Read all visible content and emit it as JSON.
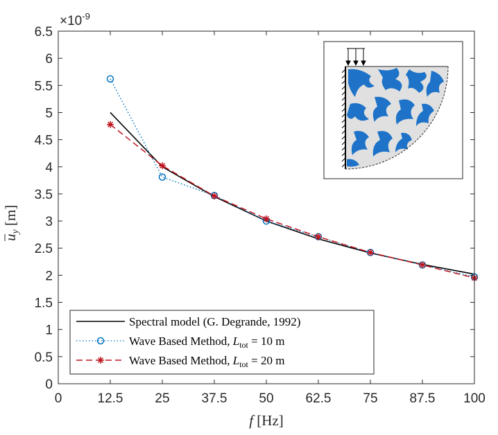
{
  "chart_data": {
    "type": "line",
    "xlabel": "f [Hz]",
    "xlabel_var": "f",
    "xlabel_unit": "[Hz]",
    "ylabel": "ū_y [m]",
    "ylabel_var": "u",
    "ylabel_sub": "y",
    "ylabel_unit": "[m]",
    "exponent_label": "×10⁻⁹",
    "exponent_base": "×10",
    "exponent_power": "-9",
    "xlim": [
      0,
      100
    ],
    "ylim": [
      0,
      6.5
    ],
    "xticks": [
      0,
      12.5,
      25,
      37.5,
      50,
      62.5,
      75,
      87.5,
      100
    ],
    "xtick_labels": [
      "0",
      "12.5",
      "25",
      "37.5",
      "50",
      "62.5",
      "75",
      "87.5",
      "100"
    ],
    "yticks": [
      0,
      0.5,
      1,
      1.5,
      2,
      2.5,
      3,
      3.5,
      4,
      4.5,
      5,
      5.5,
      6,
      6.5
    ],
    "ytick_labels": [
      "0",
      "0.5",
      "1",
      "1.5",
      "2",
      "2.5",
      "3",
      "3.5",
      "4",
      "4.5",
      "5",
      "5.5",
      "6",
      "6.5"
    ],
    "grid": false,
    "legend_position": "bottom-left",
    "series": [
      {
        "name": "Spectral model (G. Degrande, 1992)",
        "legend_text": "Spectral model (G. Degrande, 1992)",
        "color": "#000000",
        "line": "solid",
        "marker": "none",
        "x": [
          12.5,
          25,
          37.5,
          50,
          62.5,
          75,
          87.5,
          100
        ],
        "y": [
          5.0,
          4.0,
          3.45,
          3.0,
          2.67,
          2.41,
          2.2,
          2.02
        ]
      },
      {
        "name": "Wave Based Method, L_tot = 10 m",
        "legend_prefix": "Wave Based Method, ",
        "legend_var": "L",
        "legend_sub": "tot",
        "legend_suffix": " = 10 m",
        "color": "#0072BD",
        "line": "dotted",
        "marker": "circle",
        "x": [
          12.5,
          25,
          37.5,
          50,
          62.5,
          75,
          87.5,
          100
        ],
        "y": [
          5.62,
          3.81,
          3.47,
          3.0,
          2.71,
          2.42,
          2.19,
          1.97
        ]
      },
      {
        "name": "Wave Based Method, L_tot = 20 m",
        "legend_prefix": "Wave Based Method, ",
        "legend_var": "L",
        "legend_sub": "tot",
        "legend_suffix": " = 20 m",
        "color": "#C0141E",
        "line": "dashed",
        "marker": "asterisk",
        "x": [
          12.5,
          25,
          37.5,
          50,
          62.5,
          75,
          87.5,
          100
        ],
        "y": [
          4.78,
          4.02,
          3.46,
          3.04,
          2.71,
          2.42,
          2.19,
          1.95
        ]
      }
    ],
    "inset": {
      "description_icon": "quarter-circle-porous-domain-with-load-icon",
      "fill_color": "#E0E0E0",
      "inclusion_color": "#1E73C8"
    }
  }
}
